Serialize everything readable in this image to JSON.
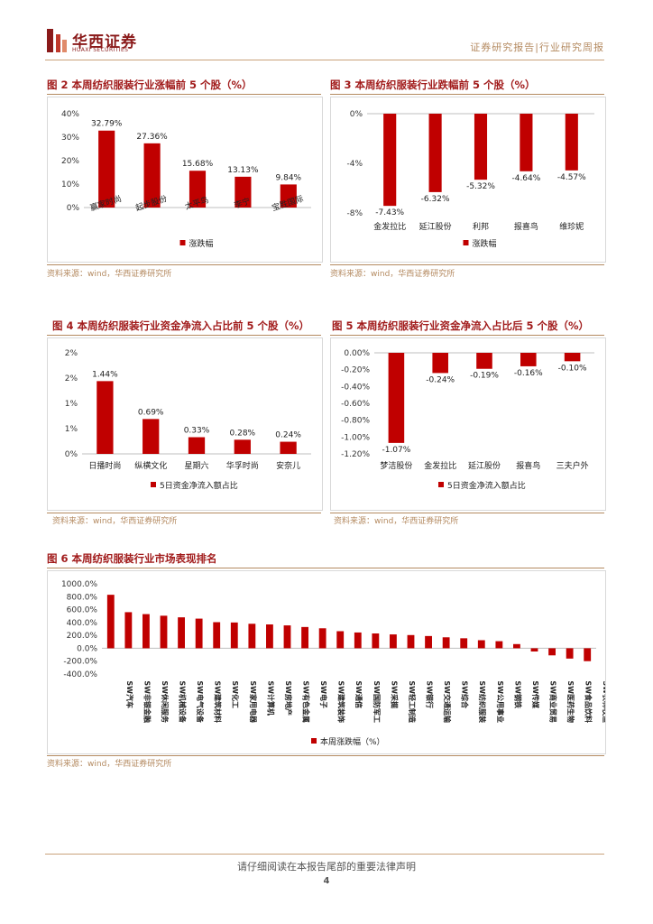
{
  "header": {
    "brand_cn": "华西证券",
    "brand_en": "HUAXI SECURITIES",
    "right_text": "证券研究报告|行业研究周报"
  },
  "colors": {
    "bar": "#c00000",
    "accent": "#a11b1b",
    "gold": "#b48a60"
  },
  "figures": [
    {
      "title": "图 2 本周纺织服装行业涨幅前 5 个股（%）",
      "source": "资料来源：wind，华西证券研究所"
    },
    {
      "title": "图 3 本周纺织服装行业跌幅前 5 个股（%）",
      "source": "资料来源：wind，华西证券研究所"
    },
    {
      "title": "图 4 本周纺织服装行业资金净流入占比前 5 个股（%）",
      "source": "资料来源：wind，华西证券研究所"
    },
    {
      "title": "图 5 本周纺织服装行业资金净流入占比后 5 个股（%）",
      "source": "资料来源：wind，华西证券研究所"
    },
    {
      "title": "图 6 本周纺织服装行业市场表现排名",
      "source": "资料来源：wind，华西证券研究所"
    }
  ],
  "chart_data": [
    {
      "type": "bar",
      "categories": [
        "赢家时尚",
        "起步股份",
        "太平鸟",
        "李宁",
        "宝胜国际"
      ],
      "series": [
        {
          "name": "涨跌幅",
          "values": [
            32.79,
            27.36,
            15.68,
            13.13,
            9.84
          ]
        }
      ],
      "labels": [
        "32.79%",
        "27.36%",
        "15.68%",
        "13.13%",
        "9.84%"
      ],
      "yticks": [
        "0%",
        "10%",
        "20%",
        "30%",
        "40%"
      ],
      "ylim": [
        0,
        40
      ]
    },
    {
      "type": "bar",
      "categories": [
        "金发拉比",
        "延江股份",
        "利邦",
        "报喜鸟",
        "维珍妮"
      ],
      "series": [
        {
          "name": "涨跌幅",
          "values": [
            -7.43,
            -6.32,
            -5.32,
            -4.64,
            -4.57
          ]
        }
      ],
      "labels": [
        "-7.43%",
        "-6.32%",
        "-5.32%",
        "-4.64%",
        "-4.57%"
      ],
      "yticks": [
        "0%",
        "-4%",
        "-8%"
      ],
      "ylim": [
        -8,
        0
      ]
    },
    {
      "type": "bar",
      "categories": [
        "日播时尚",
        "纵横文化",
        "星期六",
        "华孚时尚",
        "安奈儿"
      ],
      "series": [
        {
          "name": "5日资金净流入额占比",
          "values": [
            1.44,
            0.69,
            0.33,
            0.28,
            0.24
          ]
        }
      ],
      "labels": [
        "1.44%",
        "0.69%",
        "0.33%",
        "0.28%",
        "0.24%"
      ],
      "yticks": [
        "0%",
        "1%",
        "1%",
        "2%",
        "2%"
      ],
      "ylim": [
        0,
        2
      ]
    },
    {
      "type": "bar",
      "categories": [
        "梦洁股份",
        "金发拉比",
        "延江股份",
        "报喜鸟",
        "三夫户外"
      ],
      "series": [
        {
          "name": "5日资金净流入额占比",
          "values": [
            -1.07,
            -0.24,
            -0.19,
            -0.16,
            -0.1
          ]
        }
      ],
      "labels": [
        "-1.07%",
        "-0.24%",
        "-0.19%",
        "-0.16%",
        "-0.10%"
      ],
      "yticks": [
        "0.00%",
        "-0.20%",
        "-0.40%",
        "-0.60%",
        "-0.80%",
        "-1.00%",
        "-1.20%"
      ],
      "ylim": [
        -1.2,
        0
      ]
    },
    {
      "type": "bar",
      "categories": [
        "SW汽车",
        "SW非银金融",
        "SW休闲服务",
        "SW机械设备",
        "SW电气设备",
        "SW建筑材料",
        "SW化工",
        "SW家用电器",
        "SW计算机",
        "SW房地产",
        "SW有色金属",
        "SW电子",
        "SW建筑装饰",
        "SW通信",
        "SW国防军工",
        "SW采掘",
        "SW轻工制造",
        "SW银行",
        "SW交通运输",
        "SW综合",
        "SW纺织服装",
        "SW公用事业",
        "SW钢铁",
        "SW传媒",
        "SW商业贸易",
        "SW医药生物",
        "SW食品饮料",
        "SW农林牧渔"
      ],
      "series": [
        {
          "name": "本周涨跌幅（%）",
          "values": [
            830,
            560,
            530,
            505,
            480,
            460,
            405,
            400,
            380,
            370,
            355,
            330,
            310,
            265,
            245,
            230,
            215,
            205,
            190,
            170,
            155,
            125,
            110,
            65,
            -50,
            -110,
            -160,
            -200
          ]
        }
      ],
      "yticks": [
        "1000.0%",
        "800.0%",
        "600.0%",
        "400.0%",
        "200.0%",
        "0.0%",
        "-200.0%",
        "-400.0%"
      ],
      "ylim": [
        -400,
        1000
      ]
    }
  ],
  "footer": {
    "text": "请仔细阅读在本报告尾部的重要法律声明",
    "page": "4"
  }
}
